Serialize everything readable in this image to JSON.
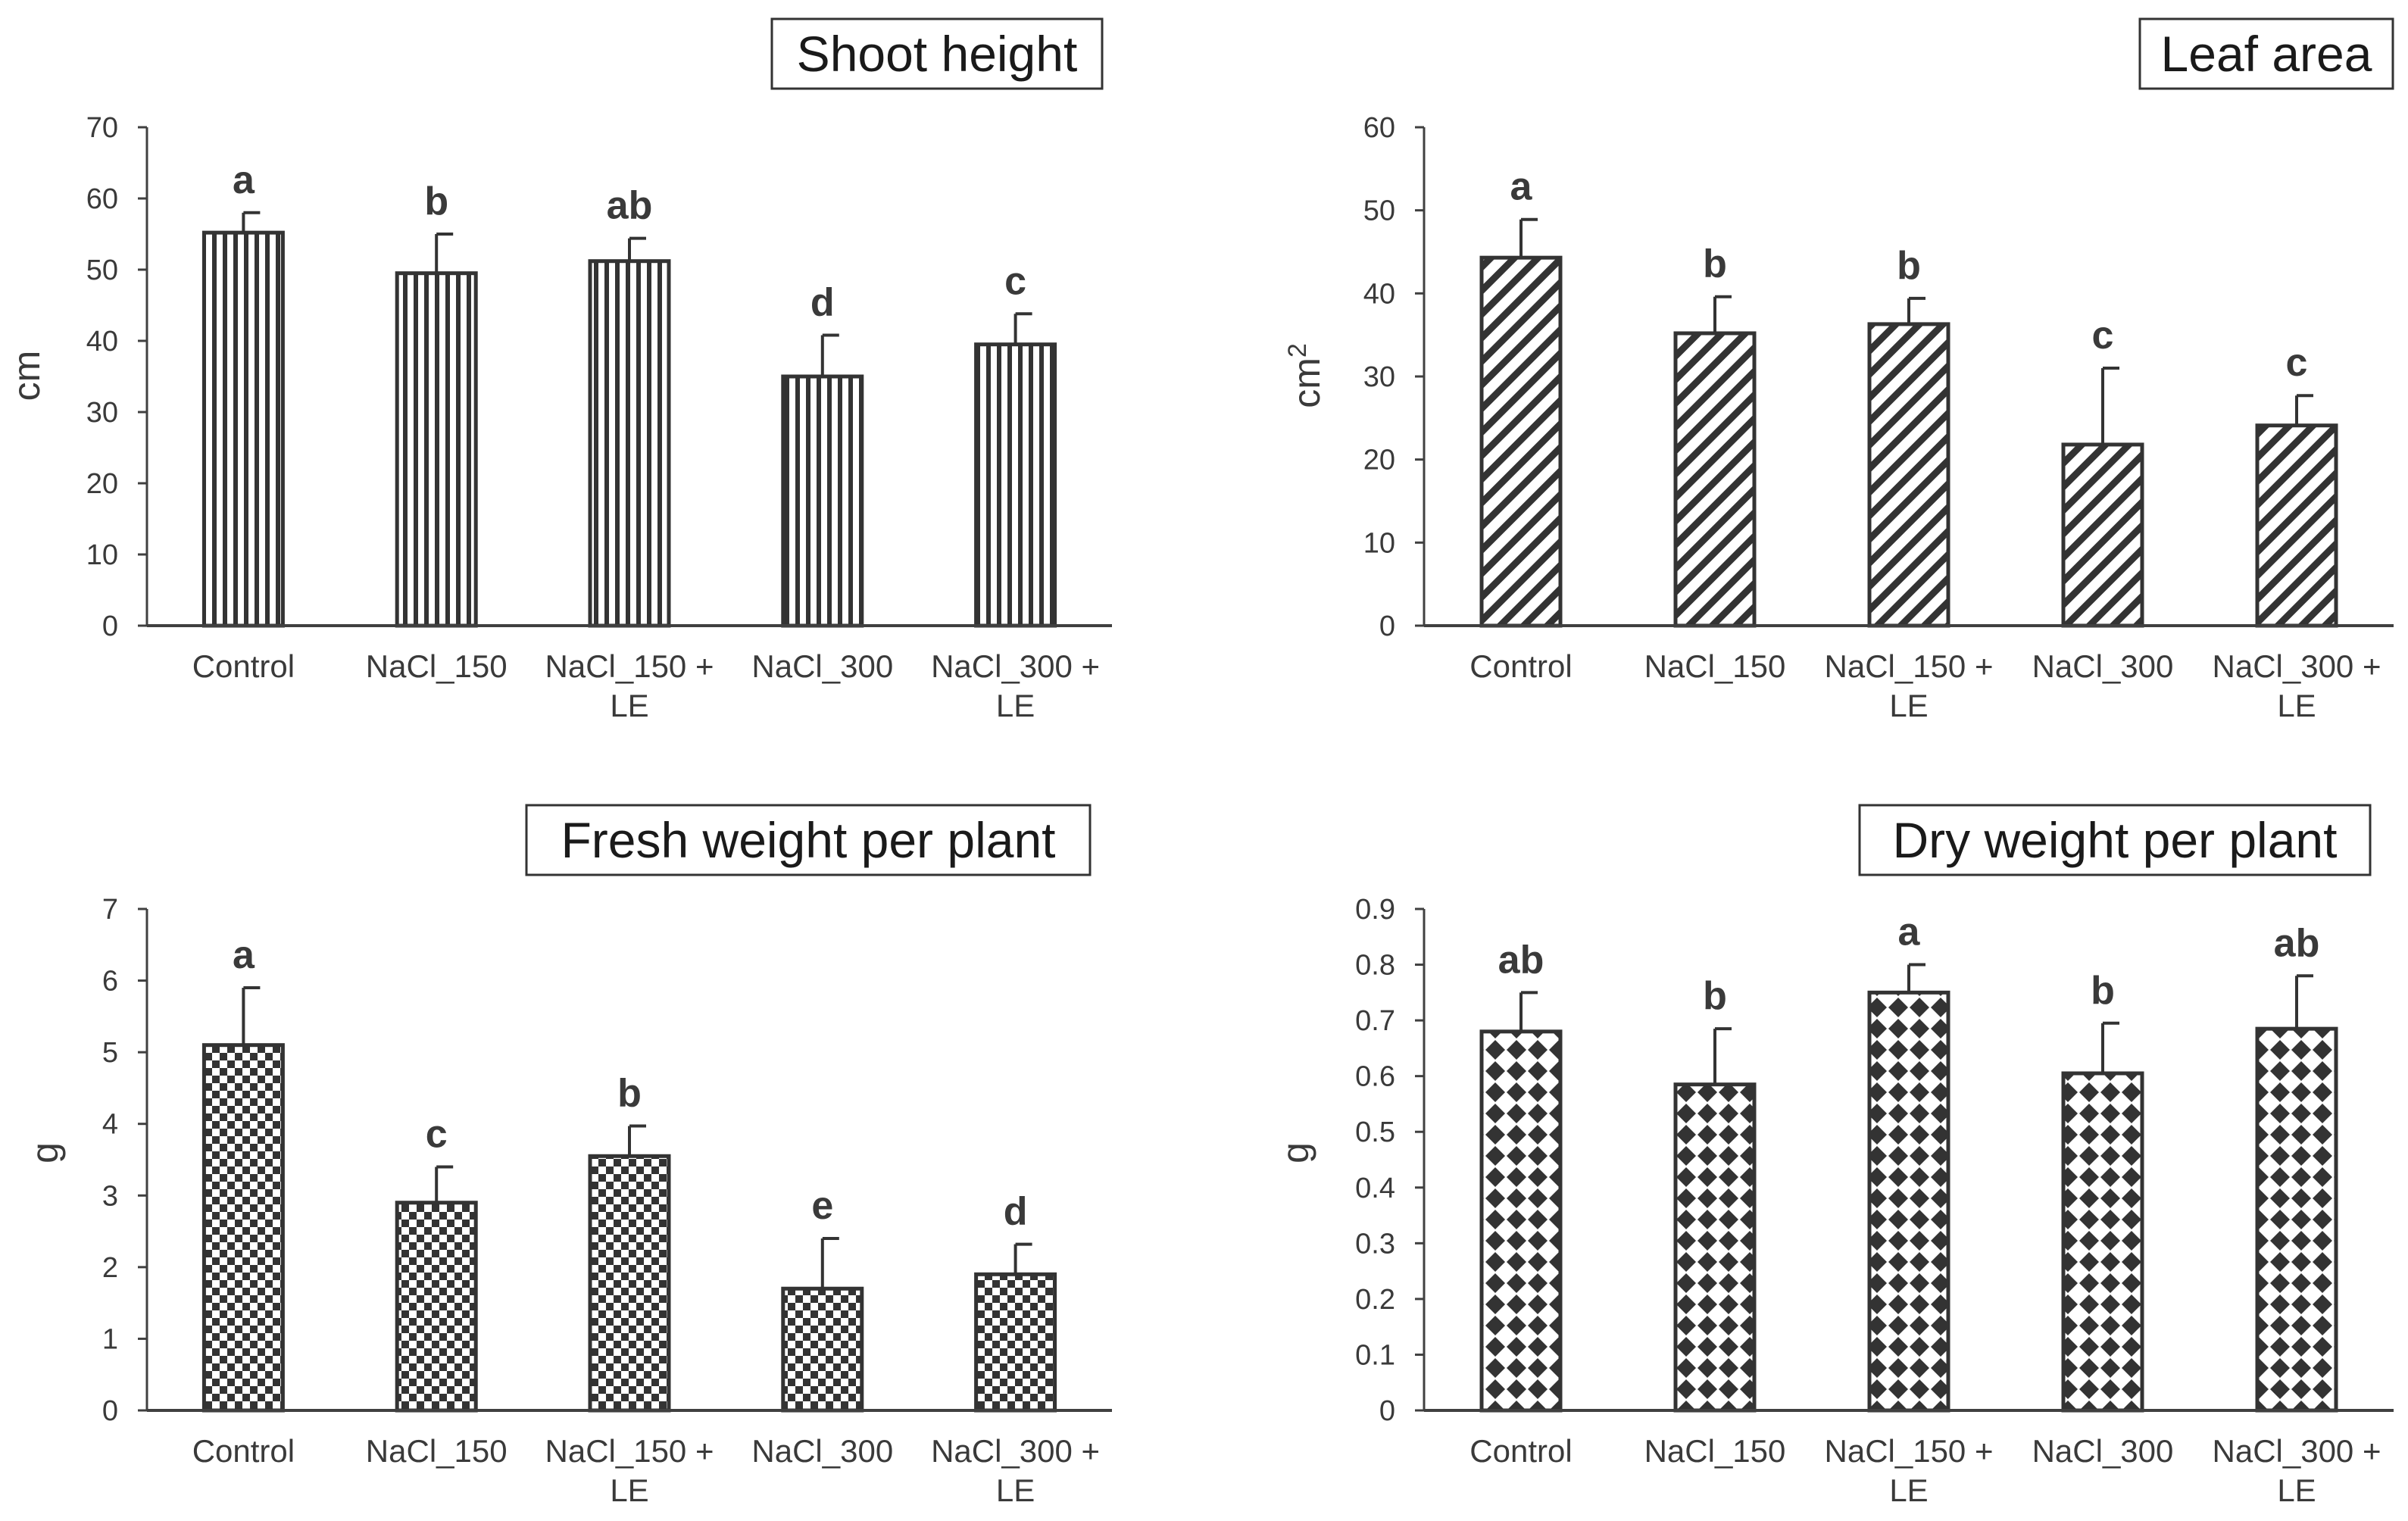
{
  "colors": {
    "ink": "#333333",
    "axis": "#404040",
    "text": "#3a3a3a"
  },
  "chart_data": [
    {
      "type": "bar",
      "title": "Shoot height",
      "ylabel": "cm",
      "ylabel_sup": "",
      "pattern": "vertical-stripes",
      "categories": [
        [
          "Control"
        ],
        [
          "NaCl_150"
        ],
        [
          "NaCl_150 +",
          "LE"
        ],
        [
          "NaCl_300"
        ],
        [
          "NaCl_300 +",
          "LE"
        ]
      ],
      "values": [
        55.2,
        49.5,
        51.2,
        35.0,
        39.5
      ],
      "errors": [
        2.8,
        5.5,
        3.2,
        5.8,
        4.3
      ],
      "significance": [
        "a",
        "b",
        "ab",
        "d",
        "c"
      ],
      "ylim": [
        0,
        70
      ],
      "ticks": [
        0,
        10,
        20,
        30,
        40,
        50,
        60,
        70
      ],
      "tick_labels": [
        "0",
        "10",
        "20",
        "30",
        "40",
        "50",
        "60",
        "70"
      ]
    },
    {
      "type": "bar",
      "title": "Leaf area",
      "ylabel": "cm",
      "ylabel_sup": "2",
      "pattern": "diagonal-stripes",
      "categories": [
        [
          "Control"
        ],
        [
          "NaCl_150"
        ],
        [
          "NaCl_150 +",
          "LE"
        ],
        [
          "NaCl_300"
        ],
        [
          "NaCl_300 +",
          "LE"
        ]
      ],
      "values": [
        44.3,
        35.2,
        36.3,
        21.8,
        24.1
      ],
      "errors": [
        4.6,
        4.4,
        3.1,
        9.2,
        3.6
      ],
      "significance": [
        "a",
        "b",
        "b",
        "c",
        "c"
      ],
      "ylim": [
        0,
        60
      ],
      "ticks": [
        0,
        10,
        20,
        30,
        40,
        50,
        60
      ],
      "tick_labels": [
        "0",
        "10",
        "20",
        "30",
        "40",
        "50",
        "60"
      ]
    },
    {
      "type": "bar",
      "title": "Fresh weight per plant",
      "ylabel": "g",
      "ylabel_sup": "",
      "pattern": "checkerboard",
      "categories": [
        [
          "Control"
        ],
        [
          "NaCl_150"
        ],
        [
          "NaCl_150 +",
          "LE"
        ],
        [
          "NaCl_300"
        ],
        [
          "NaCl_300 +",
          "LE"
        ]
      ],
      "values": [
        5.1,
        2.9,
        3.55,
        1.7,
        1.9
      ],
      "errors": [
        0.8,
        0.5,
        0.42,
        0.7,
        0.42
      ],
      "significance": [
        "a",
        "c",
        "b",
        "e",
        "d"
      ],
      "ylim": [
        0,
        7
      ],
      "ticks": [
        0,
        1,
        2,
        3,
        4,
        5,
        6,
        7
      ],
      "tick_labels": [
        "0",
        "1",
        "2",
        "3",
        "4",
        "5",
        "6",
        "7"
      ]
    },
    {
      "type": "bar",
      "title": "Dry weight per plant",
      "ylabel": "g",
      "ylabel_sup": "",
      "pattern": "diamonds",
      "categories": [
        [
          "Control"
        ],
        [
          "NaCl_150"
        ],
        [
          "NaCl_150 +",
          "LE"
        ],
        [
          "NaCl_300"
        ],
        [
          "NaCl_300 +",
          "LE"
        ]
      ],
      "values": [
        0.68,
        0.585,
        0.75,
        0.605,
        0.685
      ],
      "errors": [
        0.07,
        0.1,
        0.05,
        0.09,
        0.095
      ],
      "significance": [
        "ab",
        "b",
        "a",
        "b",
        "ab"
      ],
      "ylim": [
        0,
        0.9
      ],
      "ticks": [
        0,
        0.1,
        0.2,
        0.3,
        0.4,
        0.5,
        0.6,
        0.7,
        0.8,
        0.9
      ],
      "tick_labels": [
        "0",
        "0.1",
        "0.2",
        "0.3",
        "0.4",
        "0.5",
        "0.6",
        "0.7",
        "0.8",
        "0.9"
      ]
    }
  ]
}
